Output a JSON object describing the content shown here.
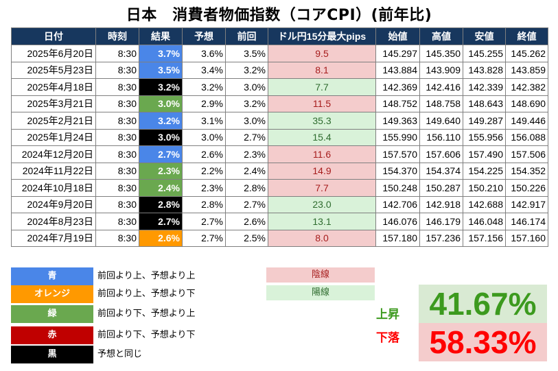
{
  "title": "日本　消費者物価指数（コアCPI）(前年比)",
  "headers": [
    "日付",
    "時刻",
    "結果",
    "予想",
    "前回",
    "ドル円15分最大pips",
    "始値",
    "高値",
    "安値",
    "終値"
  ],
  "rows": [
    {
      "date": "2025年6月20日",
      "time": "8:30",
      "result": "3.7%",
      "result_color": "blue",
      "forecast": "3.6%",
      "previous": "3.5%",
      "pips": "9.5",
      "candle": "yin",
      "open": "145.297",
      "high": "145.350",
      "low": "145.255",
      "close": "145.262"
    },
    {
      "date": "2025年5月23日",
      "time": "8:30",
      "result": "3.5%",
      "result_color": "blue",
      "forecast": "3.4%",
      "previous": "3.2%",
      "pips": "8.1",
      "candle": "yin",
      "open": "143.884",
      "high": "143.909",
      "low": "143.828",
      "close": "143.859"
    },
    {
      "date": "2025年4月18日",
      "time": "8:30",
      "result": "3.2%",
      "result_color": "black",
      "forecast": "3.2%",
      "previous": "3.0%",
      "pips": "7.7",
      "candle": "yang",
      "open": "142.369",
      "high": "142.416",
      "low": "142.339",
      "close": "142.382"
    },
    {
      "date": "2025年3月21日",
      "time": "8:30",
      "result": "3.0%",
      "result_color": "green",
      "forecast": "2.9%",
      "previous": "3.2%",
      "pips": "11.5",
      "candle": "yin",
      "open": "148.752",
      "high": "148.758",
      "low": "148.643",
      "close": "148.690"
    },
    {
      "date": "2025年2月21日",
      "time": "8:30",
      "result": "3.2%",
      "result_color": "blue",
      "forecast": "3.1%",
      "previous": "3.0%",
      "pips": "35.3",
      "candle": "yang",
      "open": "149.363",
      "high": "149.640",
      "low": "149.287",
      "close": "149.446"
    },
    {
      "date": "2025年1月24日",
      "time": "8:30",
      "result": "3.0%",
      "result_color": "black",
      "forecast": "3.0%",
      "previous": "2.7%",
      "pips": "15.4",
      "candle": "yang",
      "open": "155.990",
      "high": "156.110",
      "low": "155.956",
      "close": "156.088"
    },
    {
      "date": "2024年12月20日",
      "time": "8:30",
      "result": "2.7%",
      "result_color": "blue",
      "forecast": "2.6%",
      "previous": "2.3%",
      "pips": "11.6",
      "candle": "yin",
      "open": "157.570",
      "high": "157.606",
      "low": "157.490",
      "close": "157.506"
    },
    {
      "date": "2024年11月22日",
      "time": "8:30",
      "result": "2.3%",
      "result_color": "green",
      "forecast": "2.2%",
      "previous": "2.4%",
      "pips": "14.9",
      "candle": "yin",
      "open": "154.370",
      "high": "154.374",
      "low": "154.225",
      "close": "154.352"
    },
    {
      "date": "2024年10月18日",
      "time": "8:30",
      "result": "2.4%",
      "result_color": "green",
      "forecast": "2.3%",
      "previous": "2.8%",
      "pips": "7.7",
      "candle": "yin",
      "open": "150.248",
      "high": "150.287",
      "low": "150.210",
      "close": "150.226"
    },
    {
      "date": "2024年9月20日",
      "time": "8:30",
      "result": "2.8%",
      "result_color": "black",
      "forecast": "2.8%",
      "previous": "2.7%",
      "pips": "23.0",
      "candle": "yang",
      "open": "142.706",
      "high": "142.918",
      "low": "142.688",
      "close": "142.917"
    },
    {
      "date": "2024年8月23日",
      "time": "8:30",
      "result": "2.7%",
      "result_color": "black",
      "forecast": "2.7%",
      "previous": "2.6%",
      "pips": "13.1",
      "candle": "yang",
      "open": "146.076",
      "high": "146.179",
      "low": "146.048",
      "close": "146.174"
    },
    {
      "date": "2024年7月19日",
      "time": "8:30",
      "result": "2.6%",
      "result_color": "orange",
      "forecast": "2.7%",
      "previous": "2.5%",
      "pips": "8.0",
      "candle": "yin",
      "open": "157.180",
      "high": "157.236",
      "low": "157.156",
      "close": "157.160"
    }
  ],
  "legend": [
    {
      "label": "青",
      "color": "blue",
      "text": "前回より上、予想より上"
    },
    {
      "label": "オレンジ",
      "color": "orange",
      "text": "前回より上、予想より下"
    },
    {
      "label": "緑",
      "color": "green",
      "text": "前回より下、予想より上"
    },
    {
      "label": "赤",
      "color": "red",
      "text": "前回より下、予想より下"
    },
    {
      "label": "黒",
      "color": "black",
      "text": "予想と同じ"
    }
  ],
  "candle_legend": {
    "yin": "陰線",
    "yang": "陽線"
  },
  "stats": {
    "up_label": "上昇",
    "up_value": "41.67%",
    "down_label": "下落",
    "down_value": "58.33%"
  },
  "colors": {
    "blue": "#4a86e8",
    "orange": "#ff9900",
    "green": "#6aa84f",
    "red": "#c00000",
    "black": "#000000",
    "header": "#17375e",
    "yin_bg": "#f4cccc",
    "yang_bg": "#d9f2d9",
    "up_text": "#3c9a1e",
    "down_text": "#ff0000"
  },
  "chart_data": {
    "type": "table",
    "title": "日本　消費者物価指数（コアCPI）(前年比)",
    "columns": [
      "日付",
      "時刻",
      "結果",
      "予想",
      "前回",
      "ドル円15分最大pips",
      "始値",
      "高値",
      "安値",
      "終値"
    ]
  }
}
